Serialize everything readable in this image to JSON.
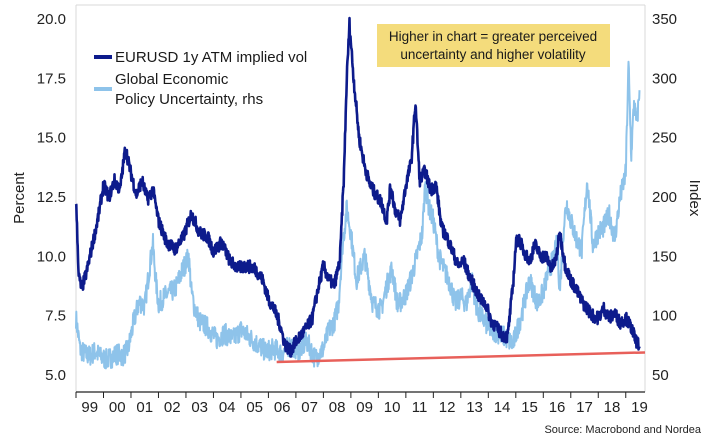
{
  "chart_data": {
    "type": "line",
    "title": "",
    "xlabel": "",
    "ylabel": "Percent",
    "ylabel_right": "Index",
    "ylim": [
      5.0,
      20.0
    ],
    "ylim_right": [
      50,
      350
    ],
    "yticks": [
      "5.0",
      "7.5",
      "10.0",
      "12.5",
      "15.0",
      "17.5",
      "20.0"
    ],
    "yticks_right": [
      "50",
      "100",
      "150",
      "200",
      "250",
      "300",
      "350"
    ],
    "xlim": [
      1999.0,
      2019.7
    ],
    "xtick_labels": [
      "99",
      "00",
      "01",
      "02",
      "03",
      "04",
      "05",
      "06",
      "07",
      "08",
      "09",
      "10",
      "11",
      "12",
      "13",
      "14",
      "15",
      "16",
      "17",
      "18",
      "19"
    ],
    "annotation": "Higher in chart = greater perceived\nuncertainty and higher volatility",
    "source": "Source: Macrobond and Nordea",
    "legend_position": "top-left",
    "colors": {
      "vol": "#0d1b8c",
      "epu": "#8ec3ea",
      "trend": "#e8605a",
      "annotation_bg": "#f4dc7c"
    },
    "series": [
      {
        "name": "EURUSD 1y ATM implied vol",
        "axis": "left",
        "x": [
          1999.0,
          1999.1,
          1999.2,
          1999.4,
          1999.6,
          1999.8,
          2000.0,
          2000.2,
          2000.4,
          2000.6,
          2000.8,
          2000.9,
          2001.0,
          2001.2,
          2001.4,
          2001.6,
          2001.8,
          2002.0,
          2002.3,
          2002.6,
          2002.9,
          2003.2,
          2003.5,
          2003.8,
          2004.0,
          2004.3,
          2004.6,
          2004.9,
          2005.2,
          2005.5,
          2005.8,
          2006.0,
          2006.2,
          2006.4,
          2006.6,
          2006.8,
          2007.0,
          2007.2,
          2007.4,
          2007.6,
          2007.8,
          2008.0,
          2008.2,
          2008.4,
          2008.6,
          2008.75,
          2008.85,
          2008.95,
          2009.1,
          2009.3,
          2009.5,
          2009.7,
          2009.9,
          2010.1,
          2010.3,
          2010.45,
          2010.6,
          2010.8,
          2011.0,
          2011.2,
          2011.35,
          2011.5,
          2011.7,
          2011.9,
          2012.1,
          2012.3,
          2012.5,
          2012.7,
          2012.9,
          2013.1,
          2013.3,
          2013.5,
          2013.7,
          2013.9,
          2014.1,
          2014.3,
          2014.5,
          2014.7,
          2014.9,
          2015.0,
          2015.1,
          2015.3,
          2015.5,
          2015.7,
          2015.9,
          2016.1,
          2016.3,
          2016.45,
          2016.6,
          2016.8,
          2017.0,
          2017.2,
          2017.4,
          2017.6,
          2017.8,
          2018.0,
          2018.2,
          2018.4,
          2018.6,
          2018.8,
          2019.0,
          2019.2,
          2019.35,
          2019.5
        ],
        "y": [
          12.4,
          9.2,
          8.6,
          9.4,
          10.5,
          11.6,
          13.0,
          12.5,
          13.2,
          12.8,
          14.6,
          14.0,
          13.5,
          12.6,
          13.2,
          12.4,
          12.8,
          11.5,
          10.6,
          10.3,
          10.8,
          11.8,
          11.0,
          10.8,
          10.2,
          10.6,
          9.8,
          9.5,
          9.6,
          9.5,
          9.0,
          8.2,
          7.8,
          7.2,
          6.3,
          6.0,
          6.4,
          6.7,
          7.0,
          7.4,
          8.6,
          9.6,
          9.0,
          8.8,
          9.8,
          13.5,
          17.5,
          19.8,
          17.5,
          15.0,
          13.8,
          13.0,
          12.6,
          12.3,
          11.5,
          13.0,
          12.0,
          11.5,
          13.0,
          14.0,
          16.5,
          13.2,
          13.6,
          12.8,
          13.0,
          11.2,
          10.8,
          10.2,
          9.6,
          9.8,
          9.2,
          8.7,
          8.2,
          8.0,
          7.3,
          7.0,
          6.7,
          6.6,
          8.8,
          10.5,
          10.8,
          10.2,
          9.8,
          10.5,
          10.0,
          10.0,
          9.5,
          9.8,
          11.0,
          9.6,
          9.0,
          8.6,
          8.1,
          7.8,
          7.5,
          7.4,
          7.8,
          7.4,
          7.6,
          7.2,
          7.4,
          7.0,
          6.5,
          6.2
        ]
      },
      {
        "name": "Global Economic\nPolicy Uncertainty, rhs",
        "axis": "right",
        "x": [
          1999.0,
          1999.15,
          1999.3,
          1999.5,
          1999.7,
          1999.9,
          2000.1,
          2000.3,
          2000.5,
          2000.7,
          2000.9,
          2001.1,
          2001.3,
          2001.5,
          2001.7,
          2001.8,
          2001.9,
          2002.0,
          2002.3,
          2002.6,
          2002.9,
          2003.1,
          2003.2,
          2003.3,
          2003.5,
          2003.8,
          2004.1,
          2004.4,
          2004.7,
          2005.0,
          2005.3,
          2005.6,
          2005.9,
          2006.2,
          2006.5,
          2006.8,
          2007.1,
          2007.4,
          2007.7,
          2008.0,
          2008.2,
          2008.4,
          2008.55,
          2008.7,
          2008.85,
          2009.0,
          2009.2,
          2009.5,
          2009.8,
          2010.1,
          2010.3,
          2010.5,
          2010.7,
          2011.0,
          2011.2,
          2011.4,
          2011.6,
          2011.7,
          2011.85,
          2012.0,
          2012.2,
          2012.4,
          2012.6,
          2012.8,
          2013.0,
          2013.2,
          2013.4,
          2013.6,
          2013.8,
          2014.0,
          2014.3,
          2014.6,
          2014.9,
          2015.2,
          2015.5,
          2015.8,
          2016.0,
          2016.2,
          2016.4,
          2016.5,
          2016.6,
          2016.75,
          2016.85,
          2017.0,
          2017.2,
          2017.4,
          2017.6,
          2017.8,
          2018.0,
          2018.2,
          2018.4,
          2018.6,
          2018.8,
          2019.0,
          2019.1,
          2019.2,
          2019.3,
          2019.4,
          2019.5
        ],
        "y": [
          98,
          72,
          68,
          66,
          70,
          65,
          63,
          65,
          68,
          66,
          72,
          95,
          112,
          108,
          145,
          160,
          130,
          110,
          118,
          122,
          140,
          150,
          120,
          108,
          95,
          90,
          80,
          85,
          80,
          88,
          82,
          76,
          70,
          72,
          68,
          76,
          70,
          78,
          64,
          72,
          88,
          95,
          110,
          160,
          190,
          170,
          130,
          150,
          110,
          105,
          125,
          140,
          108,
          118,
          132,
          150,
          170,
          210,
          190,
          180,
          150,
          138,
          128,
          110,
          116,
          110,
          130,
          104,
          98,
          90,
          86,
          82,
          76,
          100,
          130,
          110,
          120,
          138,
          150,
          162,
          120,
          178,
          195,
          180,
          165,
          155,
          215,
          160,
          170,
          175,
          185,
          165,
          200,
          220,
          312,
          235,
          280,
          260,
          290
        ]
      },
      {
        "name": "",
        "axis": "left",
        "x": [
          2006.3,
          2019.7
        ],
        "y": [
          5.55,
          5.95
        ]
      }
    ]
  }
}
